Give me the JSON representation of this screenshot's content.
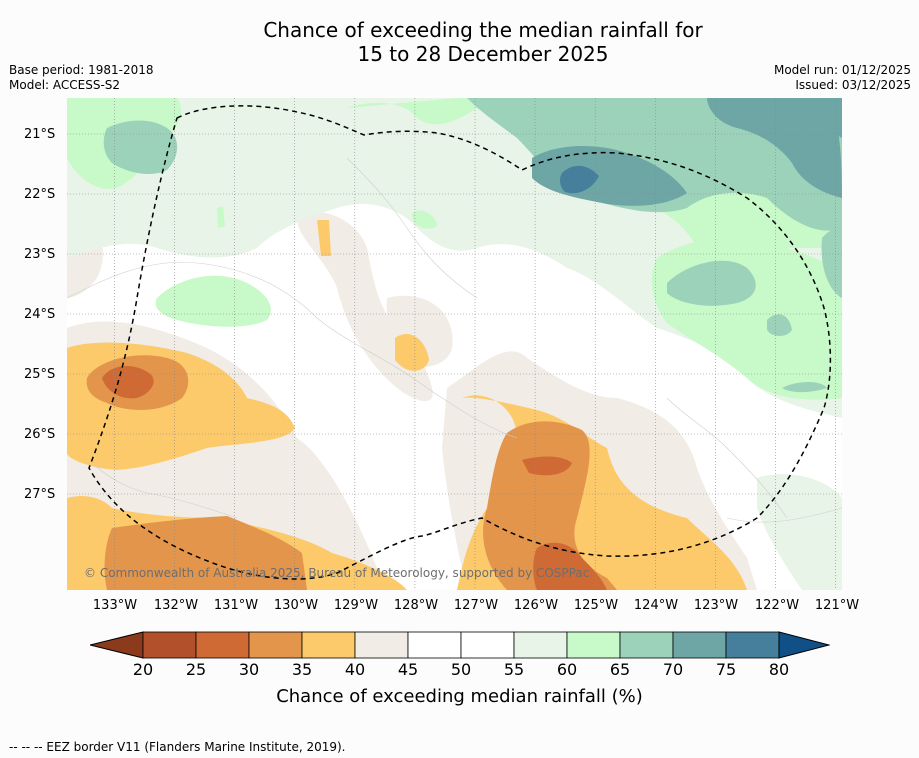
{
  "title_line1": "Chance of exceeding the median rainfall for",
  "title_line2": "15 to 28 December 2025",
  "base_period": "Base period: 1981-2018",
  "model": "Model: ACCESS-S2",
  "model_run": "Model run: 01/12/2025",
  "issued": "Issued: 03/12/2025",
  "copyright": "© Commonwealth of Australia 2025, Bureau of Meteorology, supported by COSPPac",
  "footnote": "--  --  -- EEZ border V11 (Flanders Marine Institute, 2019).",
  "colorbar_title": "Chance of exceeding median rainfall (%)",
  "colors": {
    "c20": "#b1502a",
    "c25": "#cf6a35",
    "c30": "#e2954b",
    "c35": "#fdca6b",
    "c40": "#f1ece6",
    "c45": "#ffffff",
    "c50": "#ffffff",
    "c55": "#e8f4e8",
    "c60": "#c8f9c8",
    "c65": "#9dd2ba",
    "c70": "#6ea6a6",
    "c75": "#457f9c",
    "under": "#8b3a1c",
    "over": "#114f87"
  },
  "chart_data": {
    "type": "contour-map",
    "x_ticks": [
      "133°W",
      "132°W",
      "131°W",
      "130°W",
      "129°W",
      "128°W",
      "127°W",
      "126°W",
      "125°W",
      "124°W",
      "123°W",
      "122°W",
      "121°W"
    ],
    "y_ticks": [
      "21°S",
      "22°S",
      "23°S",
      "24°S",
      "25°S",
      "26°S",
      "27°S"
    ],
    "lon_range": [
      -133.8,
      -120.9
    ],
    "lat_range": [
      -28.6,
      -20.6
    ],
    "colorbar_levels": [
      20,
      25,
      30,
      35,
      40,
      45,
      50,
      55,
      60,
      65,
      70,
      75,
      80
    ],
    "colorbar_labels": [
      "20",
      "25",
      "30",
      "35",
      "40",
      "45",
      "50",
      "55",
      "60",
      "65",
      "70",
      "75",
      "80"
    ],
    "colorbar_extend": "both",
    "features": [
      {
        "name": "dry-core-west",
        "lon": -132.6,
        "lat": -25.1,
        "value": 25
      },
      {
        "name": "dry-core-south",
        "lon": -125.6,
        "lat": -26.5,
        "value": 25
      },
      {
        "name": "wet-core-northeast",
        "lon": -125.5,
        "lat": -21.8,
        "value": 75
      }
    ],
    "eez_border": "dashed closed loop around central region"
  }
}
